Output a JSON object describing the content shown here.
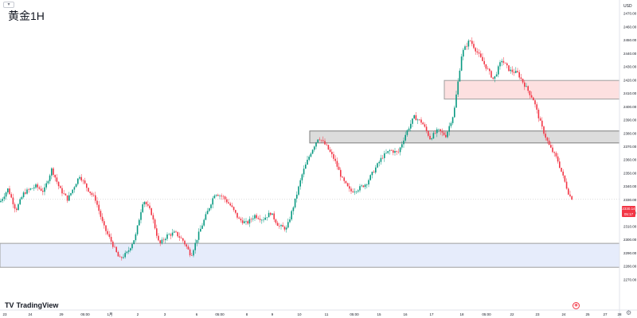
{
  "title": "黄金1H",
  "currency": "USD",
  "brand": "TradingView",
  "last_price_label": "2330.14",
  "countdown_label": "05:17",
  "icons": {
    "collapse": "chevron-icon",
    "logo": "tradingview-logo-icon",
    "alert": "alert-icon",
    "settings": "gear-icon"
  },
  "colors": {
    "up": "#089981",
    "down": "#f23645",
    "resistance_zone": "#fde0e0",
    "pivot_zone": "#dcdcdc",
    "support_zone": "#e6ecfb"
  },
  "chart_data": {
    "type": "candlestick",
    "instrument": "黄金",
    "timeframe": "1H",
    "ylim": [
      2260,
      2480
    ],
    "y_ticks": [
      "2470.00",
      "2460.00",
      "2450.00",
      "2440.00",
      "2430.00",
      "2420.00",
      "2410.00",
      "2400.00",
      "2390.00",
      "2380.00",
      "2370.00",
      "2360.00",
      "2350.00",
      "2340.00",
      "2330.00",
      "2320.00",
      "2310.00",
      "2300.00",
      "2290.00",
      "2280.00",
      "2270.00"
    ],
    "x_ticks": [
      "23",
      "24",
      "29",
      "05:00",
      "1月",
      "2",
      "3",
      "6",
      "05:00",
      "8",
      "9",
      "10",
      "11",
      "05:00",
      "15",
      "16",
      "17",
      "18",
      "05:00",
      "22",
      "23",
      "24",
      "25",
      "27",
      "28"
    ],
    "zones": [
      {
        "label": "resistance",
        "low": 2405.5,
        "high": 2419.5
      },
      {
        "label": "pivot",
        "low": 2372.5,
        "high": 2381.5
      },
      {
        "label": "support",
        "low": 2279,
        "high": 2297
      }
    ],
    "price_line": 2330.14,
    "path": [
      [
        0,
        2328
      ],
      [
        10,
        2338
      ],
      [
        20,
        2322
      ],
      [
        30,
        2335
      ],
      [
        45,
        2340
      ],
      [
        55,
        2336
      ],
      [
        65,
        2353
      ],
      [
        75,
        2338
      ],
      [
        85,
        2330
      ],
      [
        100,
        2348
      ],
      [
        110,
        2338
      ],
      [
        120,
        2330
      ],
      [
        130,
        2310
      ],
      [
        140,
        2298
      ],
      [
        150,
        2285
      ],
      [
        160,
        2290
      ],
      [
        170,
        2302
      ],
      [
        180,
        2330
      ],
      [
        190,
        2320
      ],
      [
        200,
        2296
      ],
      [
        210,
        2303
      ],
      [
        220,
        2305
      ],
      [
        230,
        2299
      ],
      [
        240,
        2288
      ],
      [
        250,
        2305
      ],
      [
        260,
        2320
      ],
      [
        270,
        2335
      ],
      [
        280,
        2332
      ],
      [
        290,
        2325
      ],
      [
        300,
        2315
      ],
      [
        310,
        2312
      ],
      [
        320,
        2318
      ],
      [
        330,
        2315
      ],
      [
        340,
        2320
      ],
      [
        350,
        2310
      ],
      [
        360,
        2308
      ],
      [
        370,
        2328
      ],
      [
        380,
        2350
      ],
      [
        390,
        2365
      ],
      [
        400,
        2377
      ],
      [
        410,
        2370
      ],
      [
        420,
        2360
      ],
      [
        430,
        2345
      ],
      [
        440,
        2336
      ],
      [
        450,
        2338
      ],
      [
        460,
        2342
      ],
      [
        470,
        2352
      ],
      [
        480,
        2362
      ],
      [
        490,
        2367
      ],
      [
        500,
        2365
      ],
      [
        510,
        2380
      ],
      [
        520,
        2392
      ],
      [
        530,
        2388
      ],
      [
        540,
        2376
      ],
      [
        550,
        2382
      ],
      [
        560,
        2378
      ],
      [
        570,
        2395
      ],
      [
        580,
        2440
      ],
      [
        590,
        2450
      ],
      [
        600,
        2440
      ],
      [
        610,
        2430
      ],
      [
        620,
        2420
      ],
      [
        630,
        2435
      ],
      [
        640,
        2427
      ],
      [
        650,
        2425
      ],
      [
        660,
        2415
      ],
      [
        670,
        2405
      ],
      [
        680,
        2385
      ],
      [
        690,
        2370
      ],
      [
        700,
        2360
      ],
      [
        710,
        2342
      ],
      [
        715,
        2333
      ],
      [
        720,
        2330
      ]
    ]
  }
}
